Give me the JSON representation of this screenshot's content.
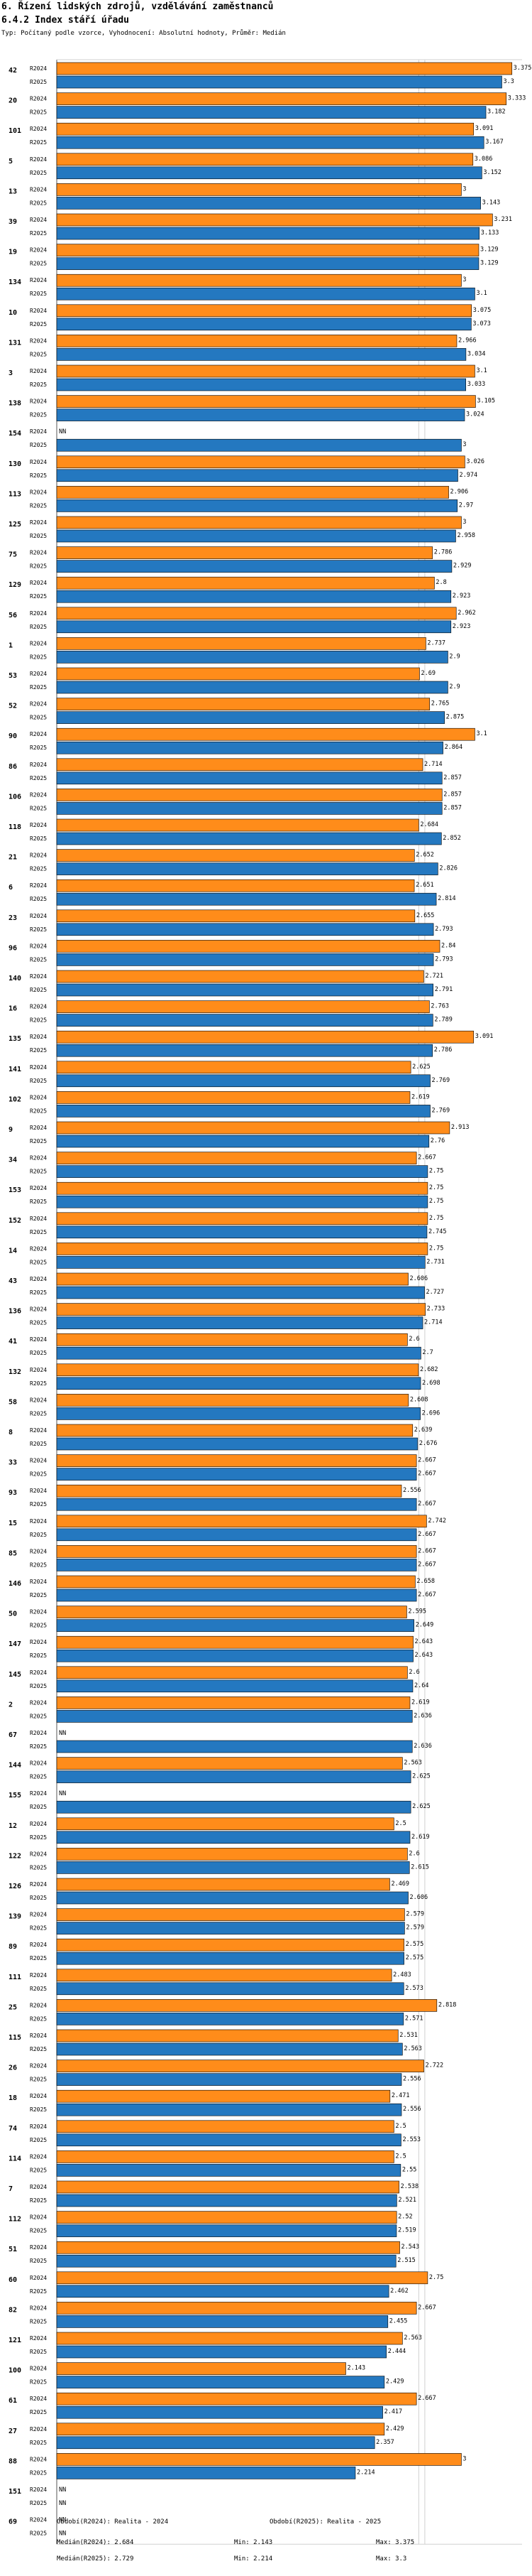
{
  "header": {
    "title": "6. Řízení lidských zdrojů, vzdělávání zaměstnanců",
    "subtitle": "6.4.2 Index stáří úřadu",
    "note": "Typ: Počítaný podle vzorce, Vyhodnocení: Absolutní hodnoty, Průměr: Medián"
  },
  "legend": {
    "col1_title": "Období(R2024): Realita - 2024",
    "col2_title": "Období(R2025): Realita - 2025",
    "median_2024": "Medián(R2024): 2.684",
    "min_2024": "Min: 2.143",
    "max_2024": "Max: 3.375",
    "median_2025": "Medián(R2025): 2.729",
    "min_2025": "Min: 2.214",
    "max_2025": "Max: 3.3"
  },
  "colors": {
    "r2024": "#ff8c1a",
    "r2025": "#2478c0"
  },
  "chart_data": {
    "type": "bar",
    "orientation": "horizontal",
    "series_names": [
      "R2024",
      "R2025"
    ],
    "missing_label": "NN",
    "xlim": [
      0,
      3.45
    ],
    "medians": [
      2.684,
      2.729
    ],
    "groups": [
      {
        "id": "42",
        "r2024": 3.375,
        "r2025": 3.3
      },
      {
        "id": "20",
        "r2024": 3.333,
        "r2025": 3.182
      },
      {
        "id": "101",
        "r2024": 3.091,
        "r2025": 3.167
      },
      {
        "id": "5",
        "r2024": 3.086,
        "r2025": 3.152
      },
      {
        "id": "13",
        "r2024": 3,
        "r2025": 3.143
      },
      {
        "id": "39",
        "r2024": 3.231,
        "r2025": 3.133
      },
      {
        "id": "19",
        "r2024": 3.129,
        "r2025": 3.129
      },
      {
        "id": "134",
        "r2024": 3,
        "r2025": 3.1
      },
      {
        "id": "10",
        "r2024": 3.075,
        "r2025": 3.073
      },
      {
        "id": "131",
        "r2024": 2.966,
        "r2025": 3.034
      },
      {
        "id": "3",
        "r2024": 3.1,
        "r2025": 3.033
      },
      {
        "id": "138",
        "r2024": 3.105,
        "r2025": 3.024
      },
      {
        "id": "154",
        "r2024": null,
        "r2025": 3
      },
      {
        "id": "130",
        "r2024": 3.026,
        "r2025": 2.974
      },
      {
        "id": "113",
        "r2024": 2.906,
        "r2025": 2.97
      },
      {
        "id": "125",
        "r2024": 3,
        "r2025": 2.958
      },
      {
        "id": "75",
        "r2024": 2.786,
        "r2025": 2.929
      },
      {
        "id": "129",
        "r2024": 2.8,
        "r2025": 2.923
      },
      {
        "id": "56",
        "r2024": 2.962,
        "r2025": 2.923
      },
      {
        "id": "1",
        "r2024": 2.737,
        "r2025": 2.9
      },
      {
        "id": "53",
        "r2024": 2.69,
        "r2025": 2.9
      },
      {
        "id": "52",
        "r2024": 2.765,
        "r2025": 2.875
      },
      {
        "id": "90",
        "r2024": 3.1,
        "r2025": 2.864
      },
      {
        "id": "86",
        "r2024": 2.714,
        "r2025": 2.857
      },
      {
        "id": "106",
        "r2024": 2.857,
        "r2025": 2.857
      },
      {
        "id": "118",
        "r2024": 2.684,
        "r2025": 2.852
      },
      {
        "id": "21",
        "r2024": 2.652,
        "r2025": 2.826
      },
      {
        "id": "6",
        "r2024": 2.651,
        "r2025": 2.814
      },
      {
        "id": "23",
        "r2024": 2.655,
        "r2025": 2.793
      },
      {
        "id": "96",
        "r2024": 2.84,
        "r2025": 2.793
      },
      {
        "id": "140",
        "r2024": 2.721,
        "r2025": 2.791
      },
      {
        "id": "16",
        "r2024": 2.763,
        "r2025": 2.789
      },
      {
        "id": "135",
        "r2024": 3.091,
        "r2025": 2.786
      },
      {
        "id": "141",
        "r2024": 2.625,
        "r2025": 2.769
      },
      {
        "id": "102",
        "r2024": 2.619,
        "r2025": 2.769
      },
      {
        "id": "9",
        "r2024": 2.913,
        "r2025": 2.76
      },
      {
        "id": "34",
        "r2024": 2.667,
        "r2025": 2.75
      },
      {
        "id": "153",
        "r2024": 2.75,
        "r2025": 2.75
      },
      {
        "id": "152",
        "r2024": 2.75,
        "r2025": 2.745
      },
      {
        "id": "14",
        "r2024": 2.75,
        "r2025": 2.731
      },
      {
        "id": "43",
        "r2024": 2.606,
        "r2025": 2.727
      },
      {
        "id": "136",
        "r2024": 2.733,
        "r2025": 2.714
      },
      {
        "id": "41",
        "r2024": 2.6,
        "r2025": 2.7
      },
      {
        "id": "132",
        "r2024": 2.682,
        "r2025": 2.698
      },
      {
        "id": "58",
        "r2024": 2.608,
        "r2025": 2.696
      },
      {
        "id": "8",
        "r2024": 2.639,
        "r2025": 2.676
      },
      {
        "id": "33",
        "r2024": 2.667,
        "r2025": 2.667
      },
      {
        "id": "93",
        "r2024": 2.556,
        "r2025": 2.667
      },
      {
        "id": "15",
        "r2024": 2.742,
        "r2025": 2.667
      },
      {
        "id": "85",
        "r2024": 2.667,
        "r2025": 2.667
      },
      {
        "id": "146",
        "r2024": 2.658,
        "r2025": 2.667
      },
      {
        "id": "50",
        "r2024": 2.595,
        "r2025": 2.649
      },
      {
        "id": "147",
        "r2024": 2.643,
        "r2025": 2.643
      },
      {
        "id": "145",
        "r2024": 2.6,
        "r2025": 2.64
      },
      {
        "id": "2",
        "r2024": 2.619,
        "r2025": 2.636
      },
      {
        "id": "67",
        "r2024": null,
        "r2025": 2.636
      },
      {
        "id": "144",
        "r2024": 2.563,
        "r2025": 2.625
      },
      {
        "id": "155",
        "r2024": null,
        "r2025": 2.625
      },
      {
        "id": "12",
        "r2024": 2.5,
        "r2025": 2.619
      },
      {
        "id": "122",
        "r2024": 2.6,
        "r2025": 2.615
      },
      {
        "id": "126",
        "r2024": 2.469,
        "r2025": 2.606
      },
      {
        "id": "139",
        "r2024": 2.579,
        "r2025": 2.579
      },
      {
        "id": "89",
        "r2024": 2.575,
        "r2025": 2.575
      },
      {
        "id": "111",
        "r2024": 2.483,
        "r2025": 2.573
      },
      {
        "id": "25",
        "r2024": 2.818,
        "r2025": 2.571
      },
      {
        "id": "115",
        "r2024": 2.531,
        "r2025": 2.563
      },
      {
        "id": "26",
        "r2024": 2.722,
        "r2025": 2.556
      },
      {
        "id": "18",
        "r2024": 2.471,
        "r2025": 2.556
      },
      {
        "id": "74",
        "r2024": 2.5,
        "r2025": 2.553
      },
      {
        "id": "114",
        "r2024": 2.5,
        "r2025": 2.55
      },
      {
        "id": "7",
        "r2024": 2.538,
        "r2025": 2.521
      },
      {
        "id": "112",
        "r2024": 2.52,
        "r2025": 2.519
      },
      {
        "id": "51",
        "r2024": 2.543,
        "r2025": 2.515
      },
      {
        "id": "60",
        "r2024": 2.75,
        "r2025": 2.462
      },
      {
        "id": "82",
        "r2024": 2.667,
        "r2025": 2.455
      },
      {
        "id": "121",
        "r2024": 2.563,
        "r2025": 2.444
      },
      {
        "id": "100",
        "r2024": 2.143,
        "r2025": 2.429
      },
      {
        "id": "61",
        "r2024": 2.667,
        "r2025": 2.417
      },
      {
        "id": "27",
        "r2024": 2.429,
        "r2025": 2.357
      },
      {
        "id": "88",
        "r2024": 3,
        "r2025": 2.214
      },
      {
        "id": "151",
        "r2024": null,
        "r2025": null
      },
      {
        "id": "69",
        "r2024": null,
        "r2025": null
      }
    ]
  }
}
